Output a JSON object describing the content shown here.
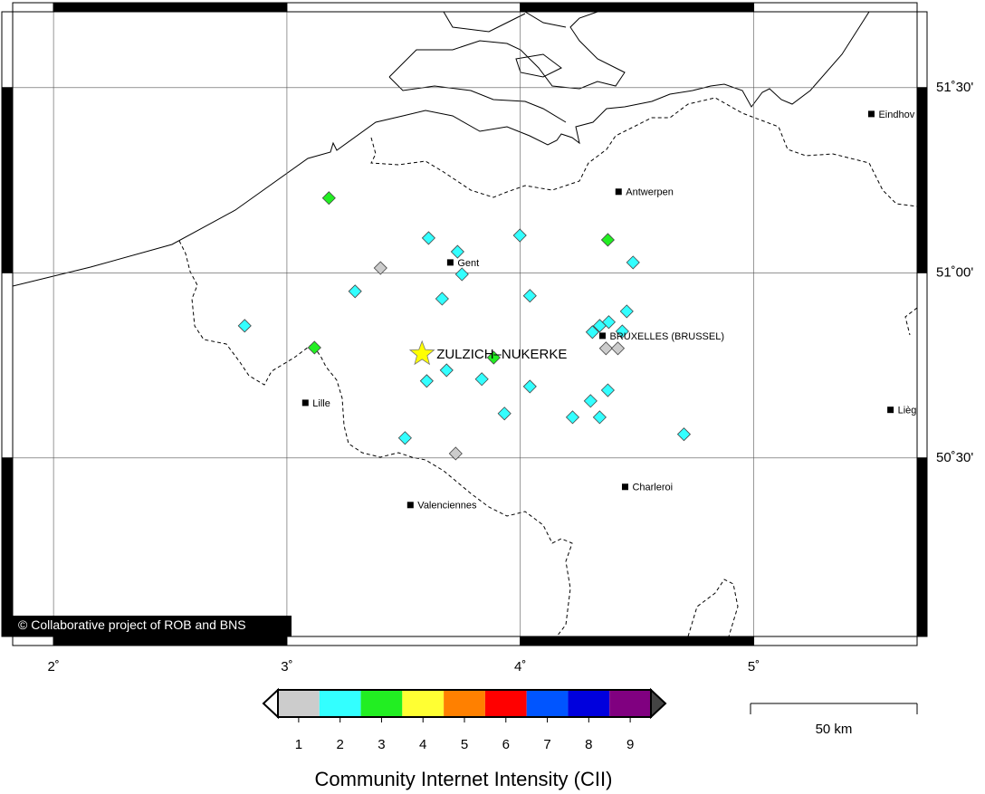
{
  "map": {
    "lon_ticks": [
      {
        "value": 2,
        "label": "2˚"
      },
      {
        "value": 3,
        "label": "3˚"
      },
      {
        "value": 4,
        "label": "4˚"
      },
      {
        "value": 5,
        "label": "5˚"
      }
    ],
    "lat_ticks": [
      {
        "value": 51.5,
        "label": "51˚30'"
      },
      {
        "value": 51.0,
        "label": "51˚00'"
      },
      {
        "value": 50.5,
        "label": "50˚30'"
      }
    ],
    "lonlim": [
      1.825,
      5.7
    ],
    "latlim": [
      50.018,
      51.705
    ],
    "grid": true
  },
  "epicenter": {
    "name": "ZULZICH–NUKERKE",
    "lon": 3.579,
    "lat": 50.781,
    "color": "#ffff00"
  },
  "cities": [
    {
      "name": "Eindhov",
      "lon": 5.504,
      "lat": 51.429
    },
    {
      "name": "Antwerpen",
      "lon": 4.421,
      "lat": 51.219
    },
    {
      "name": "Gent",
      "lon": 3.7,
      "lat": 51.028
    },
    {
      "name": "BRUXELLES (BRUSSEL)",
      "lon": 4.352,
      "lat": 50.83
    },
    {
      "name": "Lille",
      "lon": 3.079,
      "lat": 50.649
    },
    {
      "name": "Lièg",
      "lon": 5.586,
      "lat": 50.63
    },
    {
      "name": "Charleroi",
      "lon": 4.449,
      "lat": 50.422
    },
    {
      "name": "Valenciennes",
      "lon": 3.529,
      "lat": 50.373
    }
  ],
  "points": [
    {
      "lon": 3.18,
      "lat": 51.202,
      "intensity": 3
    },
    {
      "lon": 3.607,
      "lat": 51.094,
      "intensity": 2
    },
    {
      "lon": 3.731,
      "lat": 51.057,
      "intensity": 2
    },
    {
      "lon": 3.401,
      "lat": 51.013,
      "intensity": 1
    },
    {
      "lon": 3.75,
      "lat": 50.996,
      "intensity": 2
    },
    {
      "lon": 3.998,
      "lat": 51.101,
      "intensity": 2
    },
    {
      "lon": 4.375,
      "lat": 51.089,
      "intensity": 3
    },
    {
      "lon": 4.483,
      "lat": 51.028,
      "intensity": 2
    },
    {
      "lon": 3.292,
      "lat": 50.95,
      "intensity": 2
    },
    {
      "lon": 3.665,
      "lat": 50.93,
      "intensity": 2
    },
    {
      "lon": 4.041,
      "lat": 50.938,
      "intensity": 2
    },
    {
      "lon": 2.819,
      "lat": 50.857,
      "intensity": 2
    },
    {
      "lon": 3.118,
      "lat": 50.798,
      "intensity": 3
    },
    {
      "lon": 3.886,
      "lat": 50.771,
      "intensity": 3
    },
    {
      "lon": 3.684,
      "lat": 50.737,
      "intensity": 2
    },
    {
      "lon": 3.599,
      "lat": 50.708,
      "intensity": 2
    },
    {
      "lon": 3.835,
      "lat": 50.713,
      "intensity": 2
    },
    {
      "lon": 4.041,
      "lat": 50.693,
      "intensity": 2
    },
    {
      "lon": 3.932,
      "lat": 50.62,
      "intensity": 2
    },
    {
      "lon": 3.506,
      "lat": 50.554,
      "intensity": 2
    },
    {
      "lon": 3.723,
      "lat": 50.512,
      "intensity": 1
    },
    {
      "lon": 4.456,
      "lat": 50.896,
      "intensity": 2
    },
    {
      "lon": 4.379,
      "lat": 50.867,
      "intensity": 2
    },
    {
      "lon": 4.34,
      "lat": 50.857,
      "intensity": 2
    },
    {
      "lon": 4.309,
      "lat": 50.84,
      "intensity": 2
    },
    {
      "lon": 4.437,
      "lat": 50.842,
      "intensity": 2
    },
    {
      "lon": 4.367,
      "lat": 50.796,
      "intensity": 1
    },
    {
      "lon": 4.418,
      "lat": 50.796,
      "intensity": 1
    },
    {
      "lon": 4.375,
      "lat": 50.683,
      "intensity": 2
    },
    {
      "lon": 4.301,
      "lat": 50.654,
      "intensity": 2
    },
    {
      "lon": 4.224,
      "lat": 50.61,
      "intensity": 2
    },
    {
      "lon": 4.34,
      "lat": 50.61,
      "intensity": 2
    },
    {
      "lon": 4.701,
      "lat": 50.564,
      "intensity": 2
    }
  ],
  "copyright": "© Collaborative project of ROB and BNS",
  "colorbar": {
    "title": "Community Internet Intensity (CII)",
    "levels": [
      1,
      2,
      3,
      4,
      5,
      6,
      7,
      8,
      9
    ],
    "colors": [
      "#cccccc",
      "#33ffff",
      "#22ee22",
      "#ffff33",
      "#ff8000",
      "#ff0000",
      "#0055ff",
      "#0000dd",
      "#800080"
    ]
  },
  "scale_bar": {
    "label": "50 km"
  }
}
